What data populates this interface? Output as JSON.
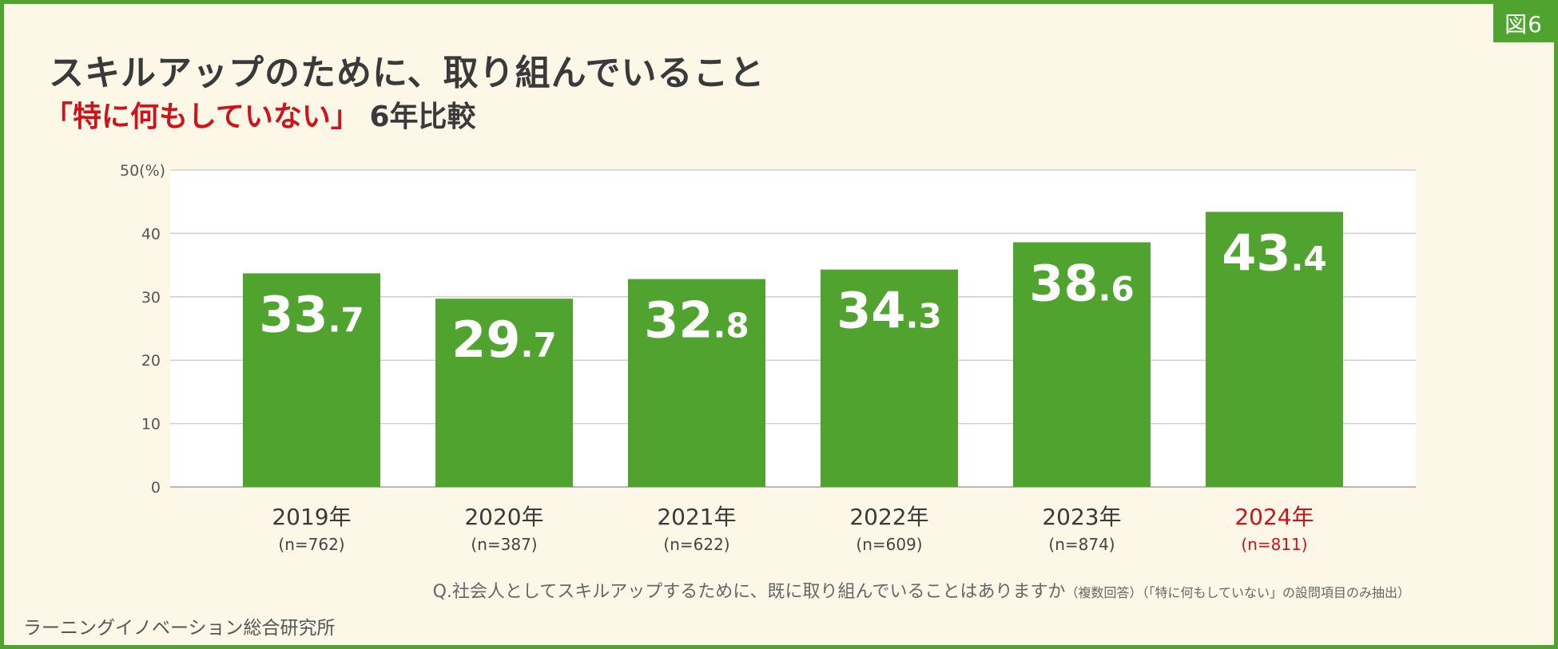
{
  "figure_label": "図6",
  "title": "スキルアップのために、取り組んでいること",
  "subtitle": {
    "highlight": "「特に何もしていない」",
    "rest": "6年比較"
  },
  "colors": {
    "bar": "#4fa32e",
    "highlight": "#d0121b",
    "plot_bg": "#ffffff",
    "page_bg": "#fdf7e7"
  },
  "chart_data": {
    "type": "bar",
    "title": "スキルアップのために、取り組んでいること",
    "subtitle": "「特に何もしていない」6年比較",
    "ylabel": "(%)",
    "ylim": [
      0,
      50
    ],
    "y_ticks": [
      "0",
      "10",
      "20",
      "30",
      "40",
      "50(%)"
    ],
    "grid": true,
    "categories": [
      "2019年",
      "2020年",
      "2021年",
      "2022年",
      "2023年",
      "2024年"
    ],
    "sample_sizes": [
      "(n=762)",
      "(n=387)",
      "(n=622)",
      "(n=609)",
      "(n=874)",
      "(n=811)"
    ],
    "values": [
      33.7,
      29.7,
      32.8,
      34.3,
      38.6,
      43.4
    ],
    "highlight_category": "2024年"
  },
  "note": {
    "main": "Q.社会人としてスキルアップするために、既に取り組んでいることはありますか",
    "small": "（複数回答）（「特に何もしていない」の設問項目のみ抽出）"
  },
  "source": "ラーニングイノベーション総合研究所"
}
